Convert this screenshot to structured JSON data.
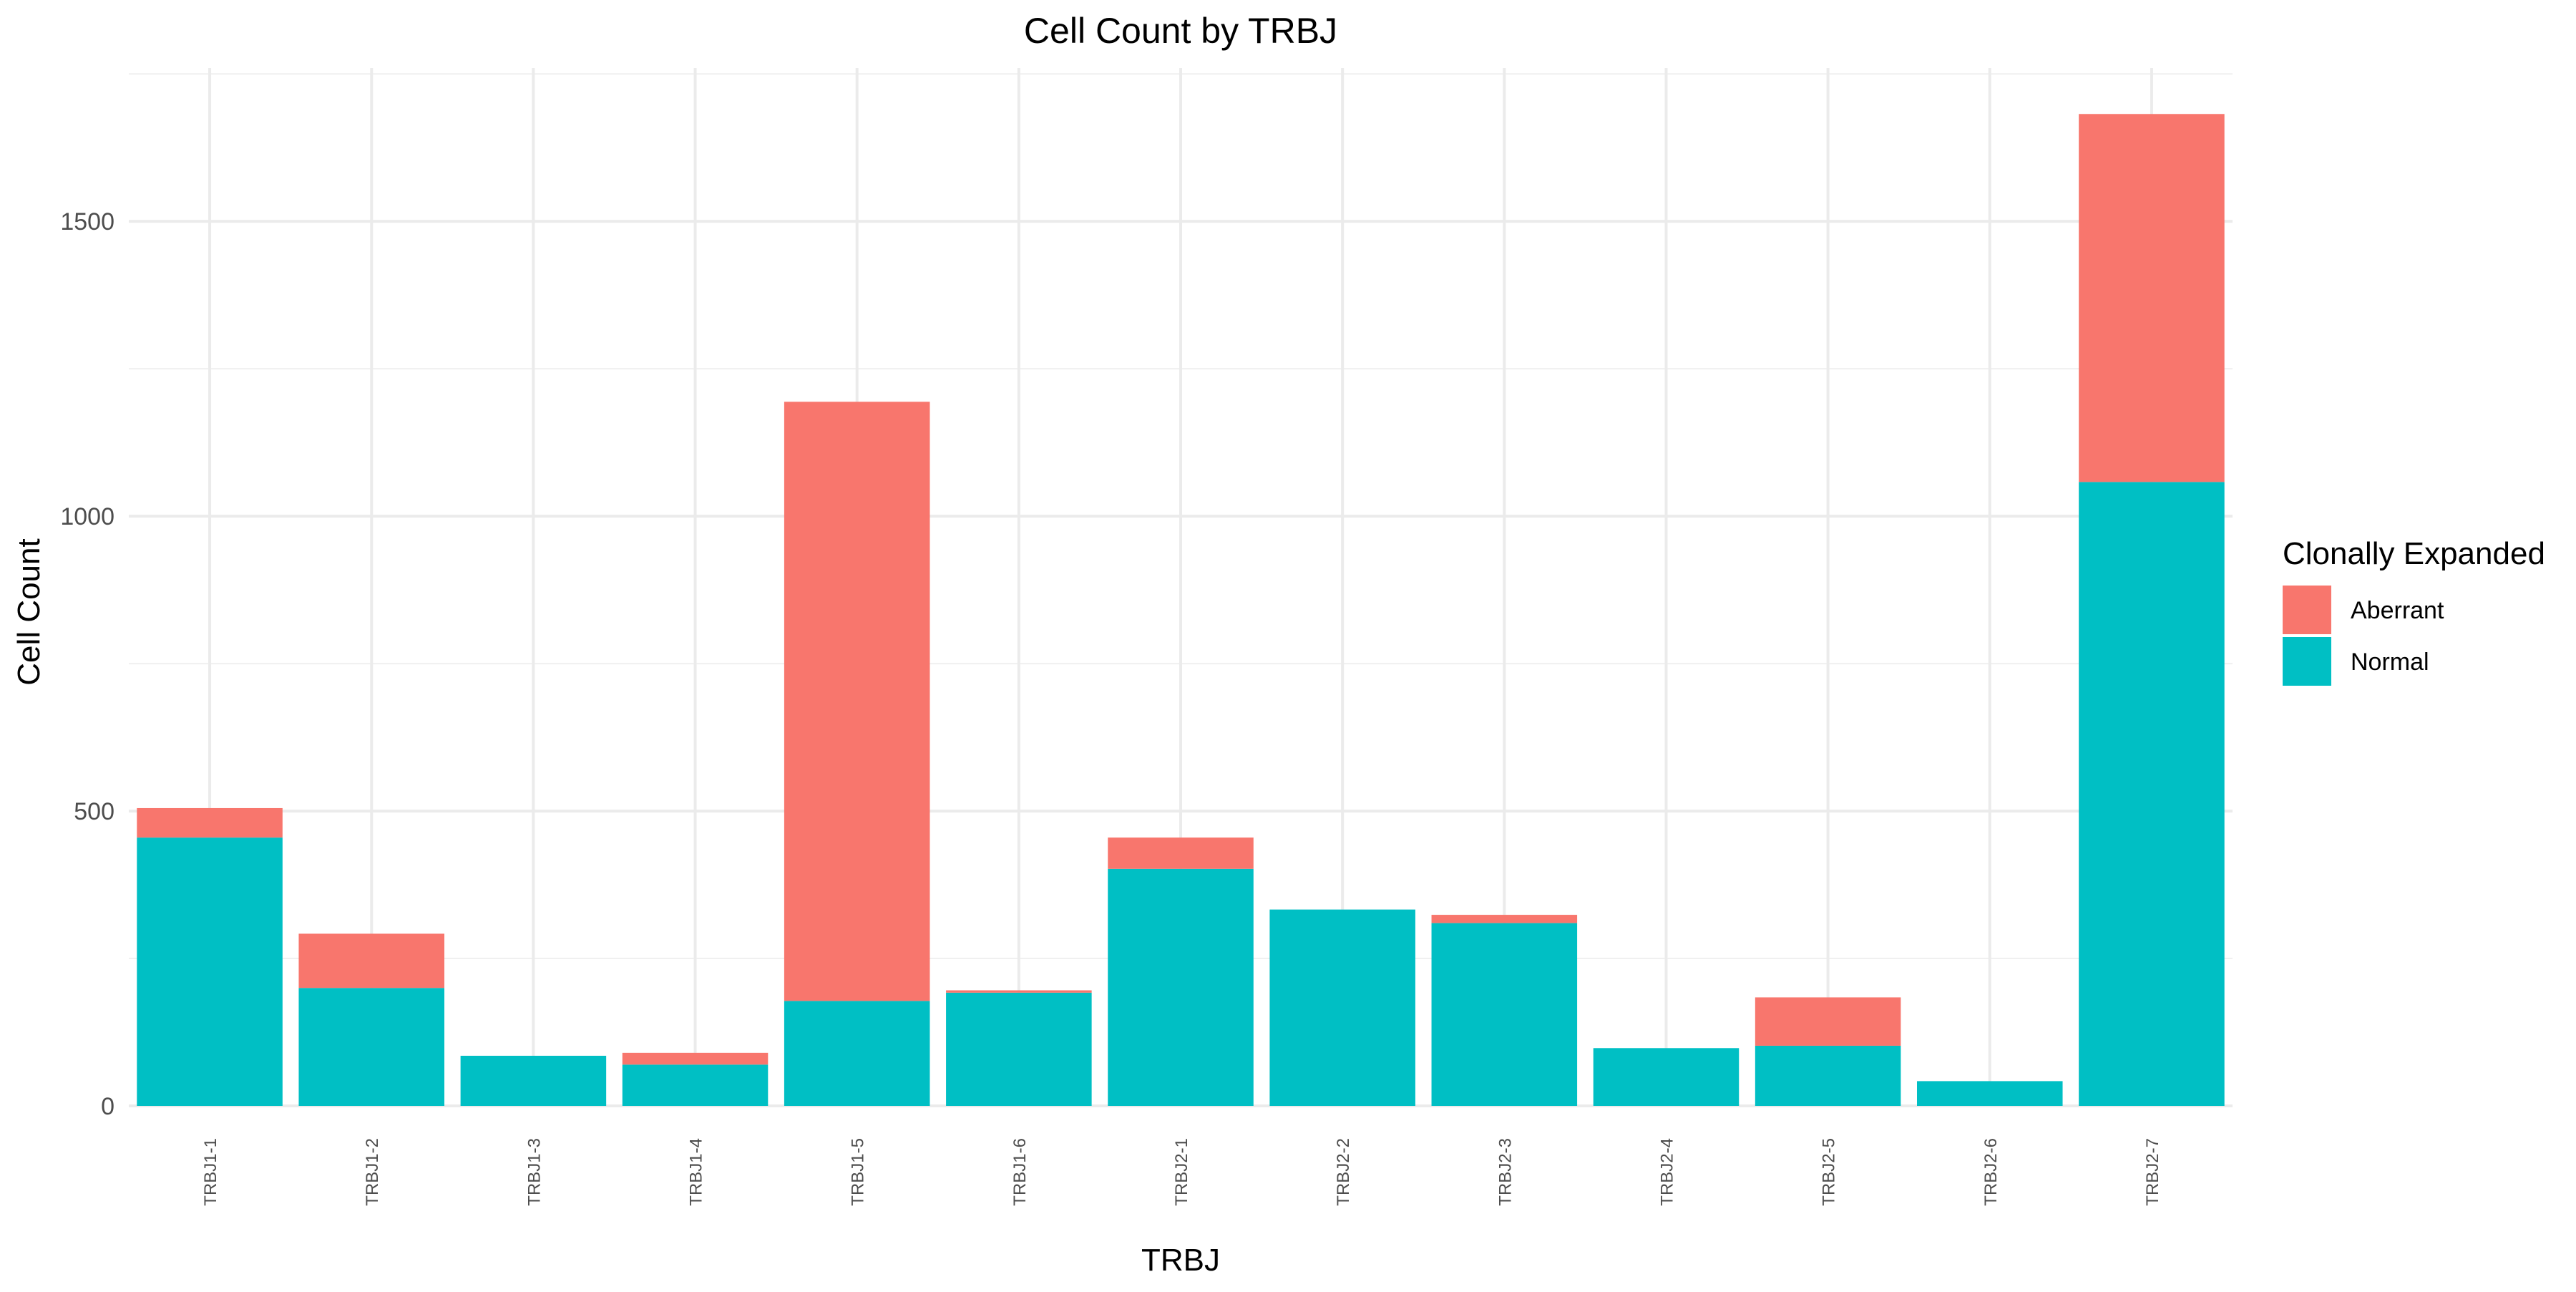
{
  "chart_data": {
    "type": "bar",
    "stacked": true,
    "title": "Cell Count by TRBJ",
    "xlabel": "TRBJ",
    "ylabel": "Cell Count",
    "ylim": [
      0,
      1760
    ],
    "yticks": [
      0,
      500,
      1000,
      1500
    ],
    "ytick_labels": [
      "0",
      "500",
      "1000",
      "1500"
    ],
    "grid": true,
    "legend": {
      "title": "Clonally Expanded",
      "position": "right"
    },
    "categories": [
      "TRBJ1-1",
      "TRBJ1-2",
      "TRBJ1-3",
      "TRBJ1-4",
      "TRBJ1-5",
      "TRBJ1-6",
      "TRBJ2-1",
      "TRBJ2-2",
      "TRBJ2-3",
      "TRBJ2-4",
      "TRBJ2-5",
      "TRBJ2-6",
      "TRBJ2-7"
    ],
    "series": [
      {
        "name": "Normal",
        "color": "#00BFC4",
        "values": [
          455,
          200,
          85,
          70,
          178,
          192,
          402,
          333,
          310,
          98,
          102,
          42,
          1058
        ]
      },
      {
        "name": "Aberrant",
        "color": "#F8766D",
        "values": [
          50,
          92,
          0,
          20,
          1016,
          4,
          53,
          0,
          14,
          0,
          82,
          0,
          624
        ]
      }
    ],
    "legend_order": [
      "Aberrant",
      "Normal"
    ]
  }
}
